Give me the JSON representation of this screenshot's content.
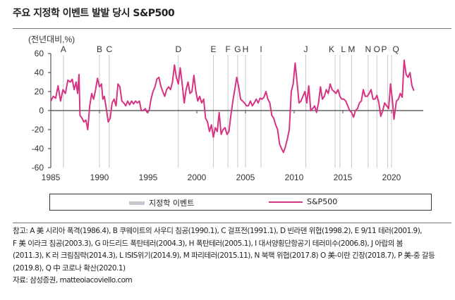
{
  "title": "주요 지정학 이벤트 발발 당시 S&P500",
  "chart_data": {
    "type": "line",
    "ylabel": "(전년대비,%)",
    "ylim": [
      -60,
      60
    ],
    "yticks": [
      60,
      40,
      20,
      0,
      -20,
      -40,
      -60
    ],
    "xlim": [
      1985,
      2022.5
    ],
    "xticks": [
      1985,
      1990,
      1995,
      2000,
      2005,
      2010,
      2015,
      2020
    ],
    "grid": false,
    "legend_position": "bottom",
    "colors": {
      "series": "#d63384",
      "events": "#c8c8c8"
    },
    "events": [
      {
        "label": "A",
        "x": 1986.3
      },
      {
        "label": "B",
        "x": 1990.0
      },
      {
        "label": "C",
        "x": 1991.0
      },
      {
        "label": "D",
        "x": 1998.1
      },
      {
        "label": "E",
        "x": 2001.7
      },
      {
        "label": "F",
        "x": 2003.2
      },
      {
        "label": "G",
        "x": 2004.2
      },
      {
        "label": "H",
        "x": 2005.0
      },
      {
        "label": "I",
        "x": 2006.6
      },
      {
        "label": "J",
        "x": 2011.2
      },
      {
        "label": "K",
        "x": 2014.2
      },
      {
        "label": "L",
        "x": 2014.7
      },
      {
        "label": "M",
        "x": 2015.9
      },
      {
        "label": "N",
        "x": 2017.6
      },
      {
        "label": "O",
        "x": 2018.5
      },
      {
        "label": "P",
        "x": 2019.6
      },
      {
        "label": "Q",
        "x": 2020.0
      }
    ],
    "series": [
      {
        "name": "S&P500",
        "points": [
          [
            1985.0,
            10
          ],
          [
            1985.25,
            15
          ],
          [
            1985.5,
            13
          ],
          [
            1985.75,
            26
          ],
          [
            1986.0,
            10
          ],
          [
            1986.25,
            22
          ],
          [
            1986.5,
            18
          ],
          [
            1986.75,
            32
          ],
          [
            1987.0,
            30
          ],
          [
            1987.2,
            33
          ],
          [
            1987.4,
            22
          ],
          [
            1987.6,
            30
          ],
          [
            1987.75,
            18
          ],
          [
            1987.9,
            38
          ],
          [
            1988.0,
            -5
          ],
          [
            1988.2,
            -8
          ],
          [
            1988.4,
            -12
          ],
          [
            1988.6,
            -10
          ],
          [
            1988.8,
            -20
          ],
          [
            1989.0,
            5
          ],
          [
            1989.2,
            18
          ],
          [
            1989.4,
            12
          ],
          [
            1989.6,
            22
          ],
          [
            1989.8,
            34
          ],
          [
            1990.0,
            25
          ],
          [
            1990.2,
            28
          ],
          [
            1990.35,
            12
          ],
          [
            1990.5,
            15
          ],
          [
            1990.7,
            2
          ],
          [
            1990.9,
            -12
          ],
          [
            1991.1,
            -8
          ],
          [
            1991.3,
            8
          ],
          [
            1991.5,
            12
          ],
          [
            1991.7,
            5
          ],
          [
            1991.9,
            28
          ],
          [
            1992.1,
            25
          ],
          [
            1992.3,
            10
          ],
          [
            1992.5,
            8
          ],
          [
            1992.7,
            5
          ],
          [
            1992.9,
            10
          ],
          [
            1993.1,
            6
          ],
          [
            1993.3,
            10
          ],
          [
            1993.5,
            7
          ],
          [
            1993.7,
            10
          ],
          [
            1993.9,
            8
          ],
          [
            1994.1,
            10
          ],
          [
            1994.3,
            0
          ],
          [
            1994.5,
            0
          ],
          [
            1994.7,
            2
          ],
          [
            1994.9,
            -2
          ],
          [
            1995.1,
            0
          ],
          [
            1995.3,
            12
          ],
          [
            1995.5,
            20
          ],
          [
            1995.7,
            25
          ],
          [
            1995.9,
            33
          ],
          [
            1996.1,
            35
          ],
          [
            1996.3,
            26
          ],
          [
            1996.5,
            20
          ],
          [
            1996.7,
            15
          ],
          [
            1996.9,
            22
          ],
          [
            1997.1,
            25
          ],
          [
            1997.3,
            22
          ],
          [
            1997.5,
            30
          ],
          [
            1997.7,
            48
          ],
          [
            1997.9,
            35
          ],
          [
            1998.1,
            28
          ],
          [
            1998.3,
            45
          ],
          [
            1998.5,
            28
          ],
          [
            1998.7,
            8
          ],
          [
            1998.9,
            22
          ],
          [
            1999.1,
            30
          ],
          [
            1999.3,
            18
          ],
          [
            1999.5,
            20
          ],
          [
            1999.7,
            37
          ],
          [
            1999.9,
            20
          ],
          [
            2000.1,
            10
          ],
          [
            2000.3,
            15
          ],
          [
            2000.5,
            8
          ],
          [
            2000.7,
            12
          ],
          [
            2000.9,
            -8
          ],
          [
            2001.1,
            -12
          ],
          [
            2001.3,
            -22
          ],
          [
            2001.5,
            -15
          ],
          [
            2001.7,
            -28
          ],
          [
            2001.9,
            -18
          ],
          [
            2002.1,
            -22
          ],
          [
            2002.3,
            -2
          ],
          [
            2002.5,
            -25
          ],
          [
            2002.7,
            -20
          ],
          [
            2002.9,
            -18
          ],
          [
            2003.1,
            -25
          ],
          [
            2003.3,
            -22
          ],
          [
            2003.5,
            -5
          ],
          [
            2003.7,
            10
          ],
          [
            2003.9,
            22
          ],
          [
            2004.1,
            35
          ],
          [
            2004.3,
            25
          ],
          [
            2004.5,
            12
          ],
          [
            2004.7,
            10
          ],
          [
            2004.9,
            8
          ],
          [
            2005.1,
            5
          ],
          [
            2005.3,
            5
          ],
          [
            2005.5,
            10
          ],
          [
            2005.7,
            5
          ],
          [
            2005.9,
            8
          ],
          [
            2006.1,
            12
          ],
          [
            2006.3,
            8
          ],
          [
            2006.5,
            13
          ],
          [
            2006.7,
            12
          ],
          [
            2006.9,
            14
          ],
          [
            2007.1,
            20
          ],
          [
            2007.3,
            12
          ],
          [
            2007.5,
            8
          ],
          [
            2007.7,
            -5
          ],
          [
            2007.9,
            -8
          ],
          [
            2008.1,
            -15
          ],
          [
            2008.3,
            -20
          ],
          [
            2008.5,
            -35
          ],
          [
            2008.7,
            -40
          ],
          [
            2008.9,
            -44
          ],
          [
            2009.1,
            -38
          ],
          [
            2009.3,
            -30
          ],
          [
            2009.5,
            -20
          ],
          [
            2009.7,
            20
          ],
          [
            2009.9,
            28
          ],
          [
            2010.1,
            50
          ],
          [
            2010.3,
            30
          ],
          [
            2010.5,
            8
          ],
          [
            2010.7,
            10
          ],
          [
            2010.9,
            15
          ],
          [
            2011.1,
            20
          ],
          [
            2011.3,
            8
          ],
          [
            2011.5,
            26
          ],
          [
            2011.7,
            0
          ],
          [
            2011.9,
            2
          ],
          [
            2012.1,
            5
          ],
          [
            2012.3,
            -2
          ],
          [
            2012.5,
            8
          ],
          [
            2012.7,
            25
          ],
          [
            2012.9,
            12
          ],
          [
            2013.1,
            15
          ],
          [
            2013.3,
            22
          ],
          [
            2013.5,
            18
          ],
          [
            2013.7,
            28
          ],
          [
            2013.9,
            22
          ],
          [
            2014.1,
            20
          ],
          [
            2014.3,
            18
          ],
          [
            2014.5,
            22
          ],
          [
            2014.7,
            15
          ],
          [
            2014.9,
            12
          ],
          [
            2015.1,
            12
          ],
          [
            2015.3,
            10
          ],
          [
            2015.5,
            5
          ],
          [
            2015.7,
            0
          ],
          [
            2015.9,
            -2
          ],
          [
            2016.1,
            -7
          ],
          [
            2016.3,
            0
          ],
          [
            2016.5,
            2
          ],
          [
            2016.7,
            8
          ],
          [
            2016.9,
            10
          ],
          [
            2017.1,
            22
          ],
          [
            2017.3,
            15
          ],
          [
            2017.5,
            15
          ],
          [
            2017.7,
            18
          ],
          [
            2017.9,
            22
          ],
          [
            2018.1,
            12
          ],
          [
            2018.3,
            12
          ],
          [
            2018.5,
            16
          ],
          [
            2018.7,
            8
          ],
          [
            2018.9,
            -6
          ],
          [
            2019.1,
            0
          ],
          [
            2019.3,
            8
          ],
          [
            2019.5,
            5
          ],
          [
            2019.7,
            2
          ],
          [
            2019.9,
            28
          ],
          [
            2020.1,
            10
          ],
          [
            2020.25,
            -9
          ],
          [
            2020.5,
            10
          ],
          [
            2020.7,
            12
          ],
          [
            2020.9,
            18
          ],
          [
            2021.1,
            14
          ],
          [
            2021.3,
            53
          ],
          [
            2021.5,
            38
          ],
          [
            2021.7,
            35
          ],
          [
            2021.9,
            40
          ],
          [
            2022.1,
            26
          ],
          [
            2022.3,
            21
          ]
        ]
      }
    ]
  },
  "legend": {
    "events_label": "지정학 이벤트",
    "series_label": "S&P500"
  },
  "notes": [
    "참고: A 美 시리아 폭격(1986.4), B 쿠웨이트의 사우디 침공(1990.1), C 걸프전(1991.1), D 빈라덴 위협(1998.2), E 9/11 테러(2001.9),",
    "F 美 이라크 침공(2003.3), G 마드리드 폭탄테러(2004.3), H 폭탄테러(2005.1), I 대서양횡단항공기 테러미수(2006.8), J 아랍의 봄",
    "(2011.3), K 러 크림침략(2014.3), L ISIS위기(2014.9), M 파리테러(2015.11), N 북핵 위협(2017.8) O 美-이란 긴장(2018.7), P 美-중 갈등",
    "(2019.8), Q 中 코로나 확산(2020.1)",
    "자료: 삼성증권, matteoiacoviello.com"
  ]
}
